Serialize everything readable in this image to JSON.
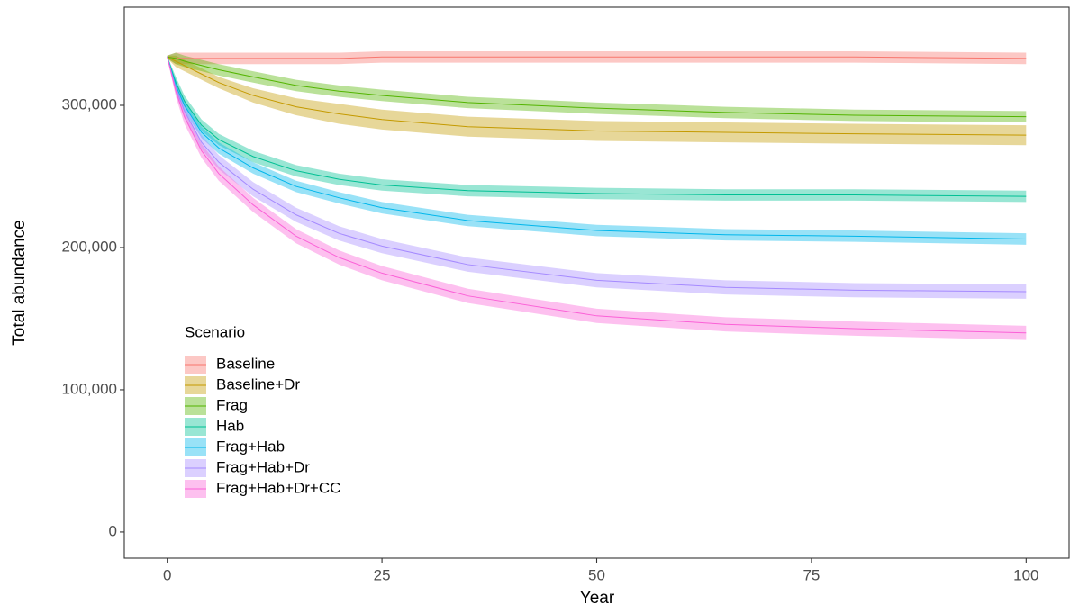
{
  "chart_data": {
    "type": "ribbon-line",
    "x_label": "Year",
    "y_label": "Total abundance",
    "legend_title": "Scenario",
    "legend_position": "bottom-left",
    "xlim": [
      -5,
      105
    ],
    "xticks": [
      0,
      25,
      50,
      75,
      100
    ],
    "ylim": [
      -18400,
      369000
    ],
    "yticks": [
      0,
      {
        "value": 100000,
        "label": "100,000"
      },
      {
        "value": 200000,
        "label": "200,000"
      },
      {
        "value": 300000,
        "label": "300,000"
      }
    ],
    "x": [
      0,
      1,
      2,
      4,
      6,
      10,
      15,
      20,
      25,
      35,
      50,
      65,
      80,
      100
    ],
    "series": [
      {
        "name": "Baseline",
        "color": "#F8766D",
        "values": [
          334000,
          333000,
          333000,
          333000,
          333000,
          333000,
          333000,
          333000,
          334000,
          334000,
          334000,
          334000,
          334000,
          333000
        ],
        "lower": [
          333000,
          329000,
          329000,
          329000,
          329000,
          329000,
          329000,
          329000,
          330000,
          330000,
          330000,
          330000,
          330000,
          329000
        ],
        "upper": [
          335000,
          337000,
          337000,
          337000,
          337000,
          337000,
          337000,
          337000,
          338000,
          338000,
          338000,
          338000,
          338000,
          337000
        ]
      },
      {
        "name": "Baseline+Dr",
        "color": "#C49A00",
        "values": [
          334000,
          331000,
          328000,
          322000,
          316000,
          307000,
          299000,
          294000,
          290000,
          285000,
          282000,
          281000,
          280000,
          279000
        ],
        "lower": [
          333000,
          327000,
          324000,
          318000,
          312000,
          302000,
          293000,
          287000,
          283000,
          278000,
          275000,
          274000,
          273000,
          272000
        ],
        "upper": [
          335000,
          335000,
          332000,
          326000,
          320000,
          312000,
          305000,
          301000,
          297000,
          292000,
          289000,
          288000,
          287000,
          286000
        ]
      },
      {
        "name": "Frag",
        "color": "#53B400",
        "values": [
          334000,
          333000,
          331000,
          328000,
          325000,
          320000,
          314000,
          310000,
          307000,
          302000,
          298000,
          295000,
          293000,
          292000
        ],
        "lower": [
          333000,
          329000,
          327000,
          324000,
          321000,
          316000,
          310000,
          306000,
          303000,
          298000,
          294000,
          291000,
          289000,
          288000
        ],
        "upper": [
          335000,
          337000,
          335000,
          332000,
          329000,
          324000,
          318000,
          314000,
          311000,
          306000,
          302000,
          299000,
          297000,
          296000
        ]
      },
      {
        "name": "Hab",
        "color": "#00C094",
        "values": [
          334000,
          316000,
          303000,
          286000,
          276000,
          264000,
          254000,
          248000,
          244000,
          240000,
          238000,
          237000,
          237000,
          236000
        ],
        "lower": [
          333000,
          312000,
          299000,
          282000,
          272000,
          260000,
          250000,
          244000,
          240000,
          236000,
          234000,
          233000,
          233000,
          232000
        ],
        "upper": [
          335000,
          320000,
          307000,
          290000,
          280000,
          268000,
          258000,
          252000,
          248000,
          244000,
          242000,
          241000,
          241000,
          240000
        ]
      },
      {
        "name": "Frag+Hab",
        "color": "#00B6EB",
        "values": [
          334000,
          314000,
          300000,
          281000,
          270000,
          256000,
          243000,
          235000,
          228000,
          219000,
          212000,
          209000,
          208000,
          206000
        ],
        "lower": [
          333000,
          310000,
          296000,
          277000,
          266000,
          252000,
          239000,
          231000,
          224000,
          215000,
          208000,
          205000,
          204000,
          202000
        ],
        "upper": [
          335000,
          318000,
          304000,
          285000,
          274000,
          260000,
          247000,
          239000,
          232000,
          223000,
          216000,
          213000,
          212000,
          210000
        ]
      },
      {
        "name": "Frag+Hab+Dr",
        "color": "#A58AFF",
        "values": [
          334000,
          312000,
          296000,
          274000,
          260000,
          241000,
          223000,
          210000,
          201000,
          188000,
          177000,
          172000,
          170000,
          169000
        ],
        "lower": [
          333000,
          308000,
          291000,
          269000,
          255000,
          236000,
          218000,
          205000,
          196000,
          183000,
          172000,
          167000,
          165000,
          164000
        ],
        "upper": [
          335000,
          316000,
          301000,
          279000,
          265000,
          246000,
          228000,
          215000,
          206000,
          193000,
          182000,
          177000,
          175000,
          174000
        ]
      },
      {
        "name": "Frag+Hab+Dr+CC",
        "color": "#FB61D7",
        "values": [
          334000,
          310000,
          292000,
          268000,
          252000,
          230000,
          208000,
          193000,
          182000,
          166000,
          152000,
          146000,
          143000,
          140000
        ],
        "lower": [
          333000,
          306000,
          287000,
          263000,
          247000,
          225000,
          203000,
          188000,
          177000,
          161000,
          147000,
          141000,
          138000,
          135000
        ],
        "upper": [
          335000,
          314000,
          297000,
          273000,
          257000,
          235000,
          213000,
          198000,
          187000,
          171000,
          157000,
          151000,
          148000,
          145000
        ]
      }
    ]
  }
}
